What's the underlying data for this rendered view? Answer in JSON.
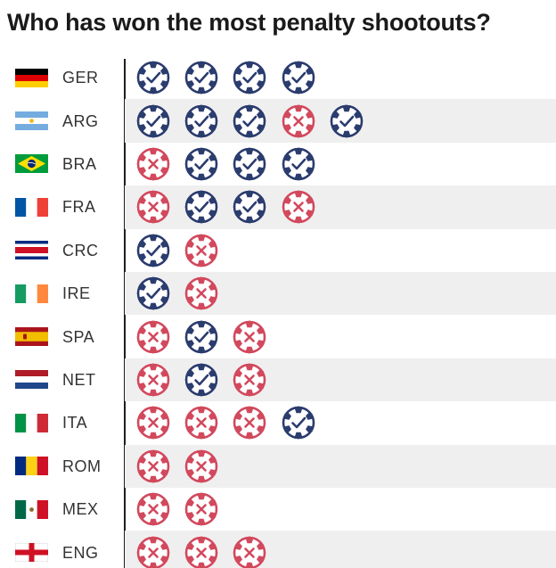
{
  "title": "Who has won the most penalty shootouts?",
  "colors": {
    "win": "#2b3c6e",
    "loss": "#d2495d",
    "band": "#efefef",
    "axis": "#1e1e1e"
  },
  "legend": {
    "win_icon": "ball-check-icon",
    "loss_icon": "ball-cross-icon"
  },
  "chart_data": {
    "type": "table",
    "title": "Who has won the most penalty shootouts?",
    "columns": [
      "country",
      "shootout_results"
    ],
    "rows": [
      {
        "country": "GER",
        "flag": "germany-flag-icon",
        "results": [
          "W",
          "W",
          "W",
          "W"
        ]
      },
      {
        "country": "ARG",
        "flag": "argentina-flag-icon",
        "results": [
          "W",
          "W",
          "W",
          "L",
          "W"
        ]
      },
      {
        "country": "BRA",
        "flag": "brazil-flag-icon",
        "results": [
          "L",
          "W",
          "W",
          "W"
        ]
      },
      {
        "country": "FRA",
        "flag": "france-flag-icon",
        "results": [
          "L",
          "W",
          "W",
          "L"
        ]
      },
      {
        "country": "CRC",
        "flag": "costa-rica-flag-icon",
        "results": [
          "W",
          "L"
        ]
      },
      {
        "country": "IRE",
        "flag": "ireland-flag-icon",
        "results": [
          "W",
          "L"
        ]
      },
      {
        "country": "SPA",
        "flag": "spain-flag-icon",
        "results": [
          "L",
          "W",
          "L"
        ]
      },
      {
        "country": "NET",
        "flag": "netherlands-flag-icon",
        "results": [
          "L",
          "W",
          "L"
        ]
      },
      {
        "country": "ITA",
        "flag": "italy-flag-icon",
        "results": [
          "L",
          "L",
          "L",
          "W"
        ]
      },
      {
        "country": "ROM",
        "flag": "romania-flag-icon",
        "results": [
          "L",
          "L"
        ]
      },
      {
        "country": "MEX",
        "flag": "mexico-flag-icon",
        "results": [
          "L",
          "L"
        ]
      },
      {
        "country": "ENG",
        "flag": "england-flag-icon",
        "results": [
          "L",
          "L",
          "L"
        ]
      }
    ]
  }
}
